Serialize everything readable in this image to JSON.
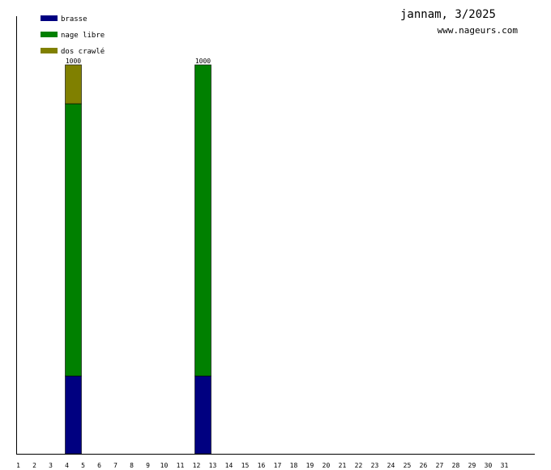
{
  "header": {
    "title": "jannam, 3/2025",
    "site": "www.nageurs.com"
  },
  "chart_data": {
    "type": "bar",
    "stacked": true,
    "categories": [
      "1",
      "2",
      "3",
      "4",
      "5",
      "6",
      "7",
      "8",
      "9",
      "10",
      "11",
      "12",
      "13",
      "14",
      "15",
      "16",
      "17",
      "18",
      "19",
      "20",
      "21",
      "22",
      "23",
      "24",
      "25",
      "26",
      "27",
      "28",
      "29",
      "30",
      "31"
    ],
    "ylim": [
      0,
      1000
    ],
    "legend_position": "top-left",
    "grid": false,
    "series": [
      {
        "name": "brasse",
        "color": "#000080",
        "values": [
          0,
          0,
          0,
          200,
          0,
          0,
          0,
          0,
          0,
          0,
          0,
          200,
          0,
          0,
          0,
          0,
          0,
          0,
          0,
          0,
          0,
          0,
          0,
          0,
          0,
          0,
          0,
          0,
          0,
          0,
          0
        ]
      },
      {
        "name": "nage libre",
        "color": "#008000",
        "values": [
          0,
          0,
          0,
          700,
          0,
          0,
          0,
          0,
          0,
          0,
          0,
          800,
          0,
          0,
          0,
          0,
          0,
          0,
          0,
          0,
          0,
          0,
          0,
          0,
          0,
          0,
          0,
          0,
          0,
          0,
          0
        ]
      },
      {
        "name": "dos crawlé",
        "color": "#808000",
        "values": [
          0,
          0,
          0,
          100,
          0,
          0,
          0,
          0,
          0,
          0,
          0,
          0,
          0,
          0,
          0,
          0,
          0,
          0,
          0,
          0,
          0,
          0,
          0,
          0,
          0,
          0,
          0,
          0,
          0,
          0,
          0
        ]
      }
    ],
    "totals": [
      0,
      0,
      0,
      1000,
      0,
      0,
      0,
      0,
      0,
      0,
      0,
      1000,
      0,
      0,
      0,
      0,
      0,
      0,
      0,
      0,
      0,
      0,
      0,
      0,
      0,
      0,
      0,
      0,
      0,
      0,
      0
    ]
  }
}
